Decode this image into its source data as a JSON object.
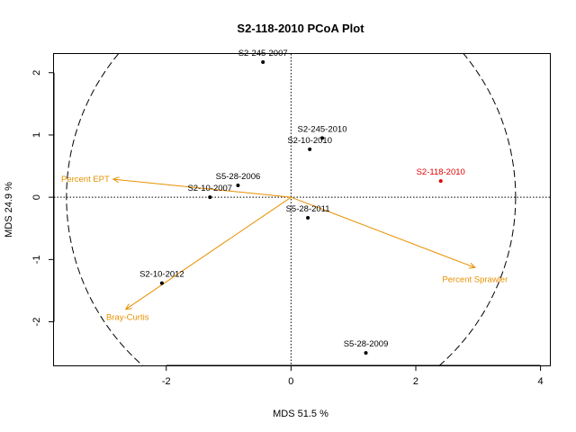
{
  "chart_data": {
    "type": "scatter",
    "title": "S2-118-2010 PCoA Plot",
    "xlabel": "MDS  51.5 %",
    "ylabel": "MDS  24.9 %",
    "xlim": [
      -3.8,
      4.15
    ],
    "ylim": [
      -2.7,
      2.3
    ],
    "xticks": [
      -2,
      0,
      2,
      4
    ],
    "yticks": [
      -2,
      -1,
      0,
      1,
      2
    ],
    "reference_lines": {
      "x": 0,
      "y": 0,
      "style": "dotted"
    },
    "circle": {
      "center": [
        0,
        0
      ],
      "radius": 3.6,
      "style": "dashed"
    },
    "points": [
      {
        "label": "S2-245-2007",
        "x": -0.45,
        "y": 2.17,
        "color": "#000000"
      },
      {
        "label": "S2-245-2010",
        "x": 0.5,
        "y": 0.95,
        "color": "#000000"
      },
      {
        "label": "S2-10-2010",
        "x": 0.3,
        "y": 0.77,
        "color": "#000000"
      },
      {
        "label": "S2-118-2010",
        "x": 2.4,
        "y": 0.26,
        "color": "#e00000"
      },
      {
        "label": "S5-28-2006",
        "x": -0.85,
        "y": 0.19,
        "color": "#000000"
      },
      {
        "label": "S2-10-2007",
        "x": -1.3,
        "y": 0.0,
        "color": "#000000"
      },
      {
        "label": "S5-28-2011",
        "x": 0.27,
        "y": -0.33,
        "color": "#000000"
      },
      {
        "label": "S2-10-2012",
        "x": -2.07,
        "y": -1.38,
        "color": "#000000"
      },
      {
        "label": "S5-28-2009",
        "x": 1.2,
        "y": -2.5,
        "color": "#000000"
      }
    ],
    "vectors": [
      {
        "label": "Percent EPT",
        "x": -2.85,
        "y": 0.29,
        "color": "#e89000"
      },
      {
        "label": "Percent Sprawler",
        "x": 2.95,
        "y": -1.13,
        "color": "#e89000"
      },
      {
        "label": "Bray-Curtis",
        "x": -2.65,
        "y": -1.8,
        "color": "#e89000"
      }
    ]
  }
}
